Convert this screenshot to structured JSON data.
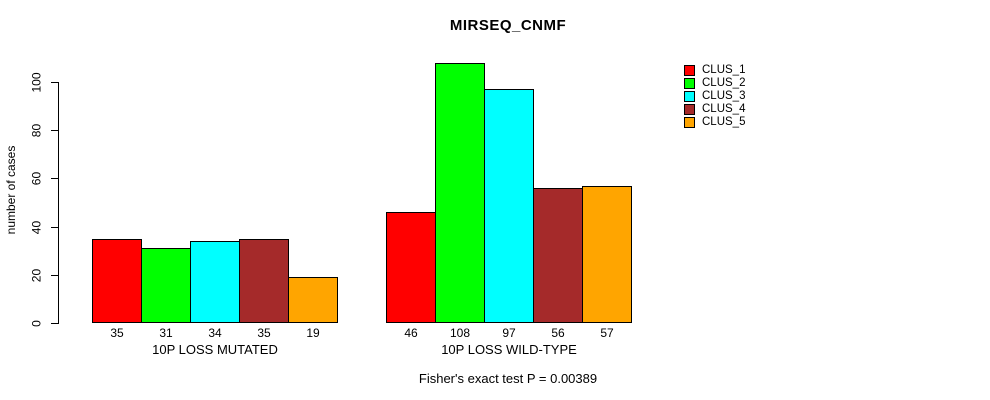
{
  "title": "MIRSEQ_CNMF",
  "footer": "Fisher's exact test P = 0.00389",
  "y_axis": {
    "label": "number of cases",
    "ticks": [
      0,
      20,
      40,
      60,
      80,
      100
    ]
  },
  "legend": {
    "items": [
      {
        "label": "CLUS_1",
        "color": "#FF0000"
      },
      {
        "label": "CLUS_2",
        "color": "#00FF00"
      },
      {
        "label": "CLUS_3",
        "color": "#00FFFF"
      },
      {
        "label": "CLUS_4",
        "color": "#A52A2A"
      },
      {
        "label": "CLUS_5",
        "color": "#FFA500"
      }
    ]
  },
  "chart_data": {
    "type": "bar",
    "title": "MIRSEQ_CNMF",
    "categories": [
      "10P LOSS MUTATED",
      "10P LOSS WILD-TYPE"
    ],
    "series": [
      {
        "name": "CLUS_1",
        "color": "#FF0000",
        "values": [
          35,
          46
        ]
      },
      {
        "name": "CLUS_2",
        "color": "#00FF00",
        "values": [
          31,
          108
        ]
      },
      {
        "name": "CLUS_3",
        "color": "#00FFFF",
        "values": [
          34,
          97
        ]
      },
      {
        "name": "CLUS_4",
        "color": "#A52A2A",
        "values": [
          35,
          56
        ]
      },
      {
        "name": "CLUS_5",
        "color": "#FFA500",
        "values": [
          19,
          57
        ]
      }
    ],
    "xlabel": "",
    "ylabel": "number of cases",
    "ylim": [
      0,
      110
    ],
    "y_ticks": [
      0,
      20,
      40,
      60,
      80,
      100
    ],
    "grid": false,
    "legend_position": "right",
    "bar_value_labels": true,
    "annotation": "Fisher's exact test P = 0.00389"
  }
}
